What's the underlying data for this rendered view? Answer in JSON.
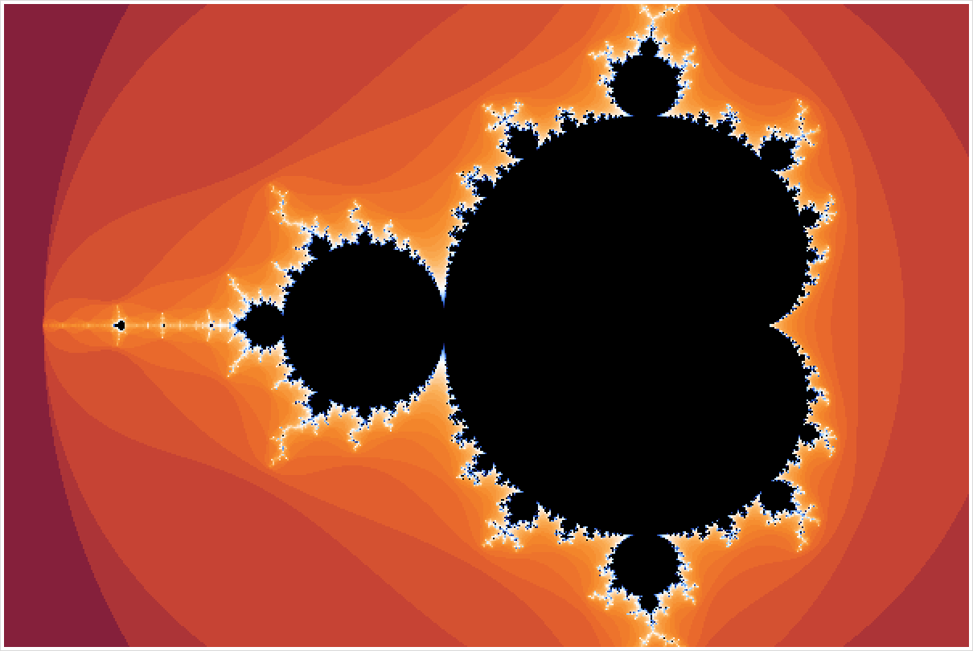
{
  "fractal": {
    "set": "mandelbrot",
    "center": {
      "re": -0.65,
      "im": 0.0
    },
    "re_range": [
      -2.12,
      0.88
    ],
    "im_range": [
      -1.0,
      1.0
    ],
    "max_iterations": 256,
    "inside_color": "#000000",
    "palette": [
      "#45092e",
      "#7a1a3c",
      "#c23f35",
      "#e8652c",
      "#f58a2b",
      "#fbb15a",
      "#fde0bf",
      "#ffffff",
      "#9fd0ff",
      "#2f6cdc",
      "#1a1f6e",
      "#000000"
    ]
  }
}
